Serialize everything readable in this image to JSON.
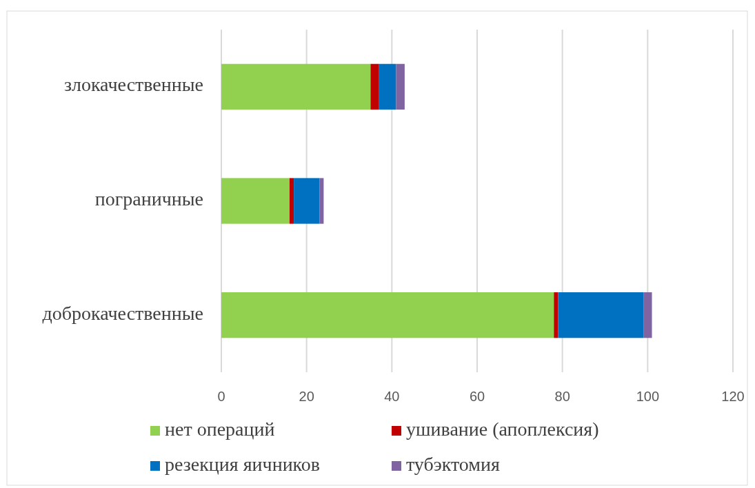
{
  "chart_data": {
    "type": "bar",
    "orientation": "horizontal",
    "stacked": true,
    "categories": [
      "злокачественные",
      "пограничные",
      "доброкачественные"
    ],
    "series": [
      {
        "name": "нет операций",
        "color": "#92d050",
        "values": [
          35,
          16,
          78
        ]
      },
      {
        "name": "ушивание (апоплексия)",
        "color": "#c00000",
        "values": [
          2,
          1,
          1
        ]
      },
      {
        "name": "резекция яичников",
        "color": "#0070c0",
        "values": [
          4,
          6,
          20
        ]
      },
      {
        "name": "тубэктомия",
        "color": "#8064a2",
        "values": [
          2,
          1,
          2
        ]
      }
    ],
    "xlim": [
      0,
      120
    ],
    "xticks": [
      0,
      20,
      40,
      60,
      80,
      100,
      120
    ],
    "grid": "x",
    "legend": "bottom"
  }
}
